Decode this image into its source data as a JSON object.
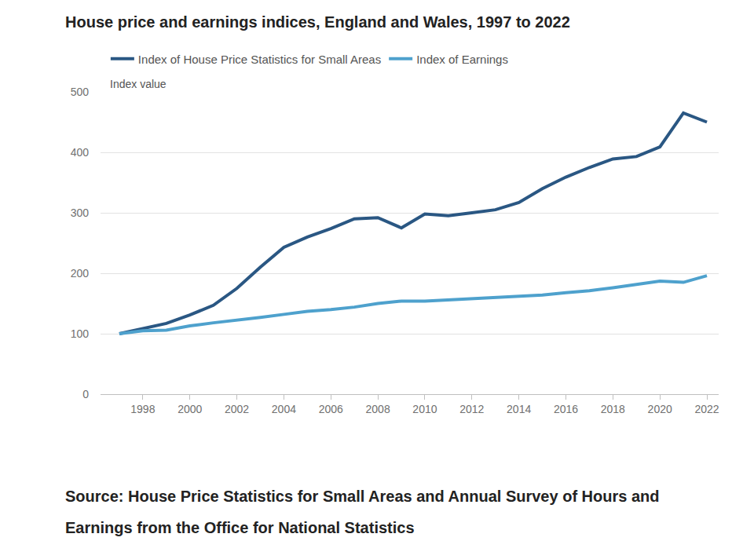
{
  "chart_data": {
    "type": "line",
    "title": "House price and earnings indices, England and Wales, 1997 to 2022",
    "y_label": "Index value",
    "source": "Source: House Price Statistics for Small Areas and Annual Survey of Hours and Earnings from the Office for National Statistics",
    "x": [
      1997,
      1998,
      1999,
      2000,
      2001,
      2002,
      2003,
      2004,
      2005,
      2006,
      2007,
      2008,
      2009,
      2010,
      2011,
      2012,
      2013,
      2014,
      2015,
      2016,
      2017,
      2018,
      2019,
      2020,
      2021,
      2022
    ],
    "series": [
      {
        "name": "Index of House Price Statistics for Small Areas",
        "color": "#2a5783",
        "values": [
          100,
          108,
          117,
          131,
          147,
          175,
          210,
          243,
          260,
          274,
          290,
          292,
          275,
          298,
          295,
          300,
          305,
          317,
          340,
          359,
          375,
          389,
          393,
          409,
          465,
          450
        ]
      },
      {
        "name": "Index of Earnings",
        "color": "#4ea1cd",
        "values": [
          100,
          105,
          106,
          113,
          118,
          122,
          127,
          132,
          137,
          140,
          144,
          150,
          154,
          154,
          156,
          158,
          161,
          162,
          164,
          168,
          171,
          176,
          181,
          187,
          185,
          196
        ]
      }
    ],
    "xlim": [
      1996.2,
      2022.5
    ],
    "xticks": [
      1998,
      2000,
      2002,
      2004,
      2006,
      2008,
      2010,
      2012,
      2014,
      2016,
      2018,
      2020,
      2022
    ],
    "ylim": [
      0,
      500
    ],
    "yticks": [
      0,
      100,
      200,
      300,
      400,
      500
    ],
    "grid": true,
    "legend": "top"
  }
}
